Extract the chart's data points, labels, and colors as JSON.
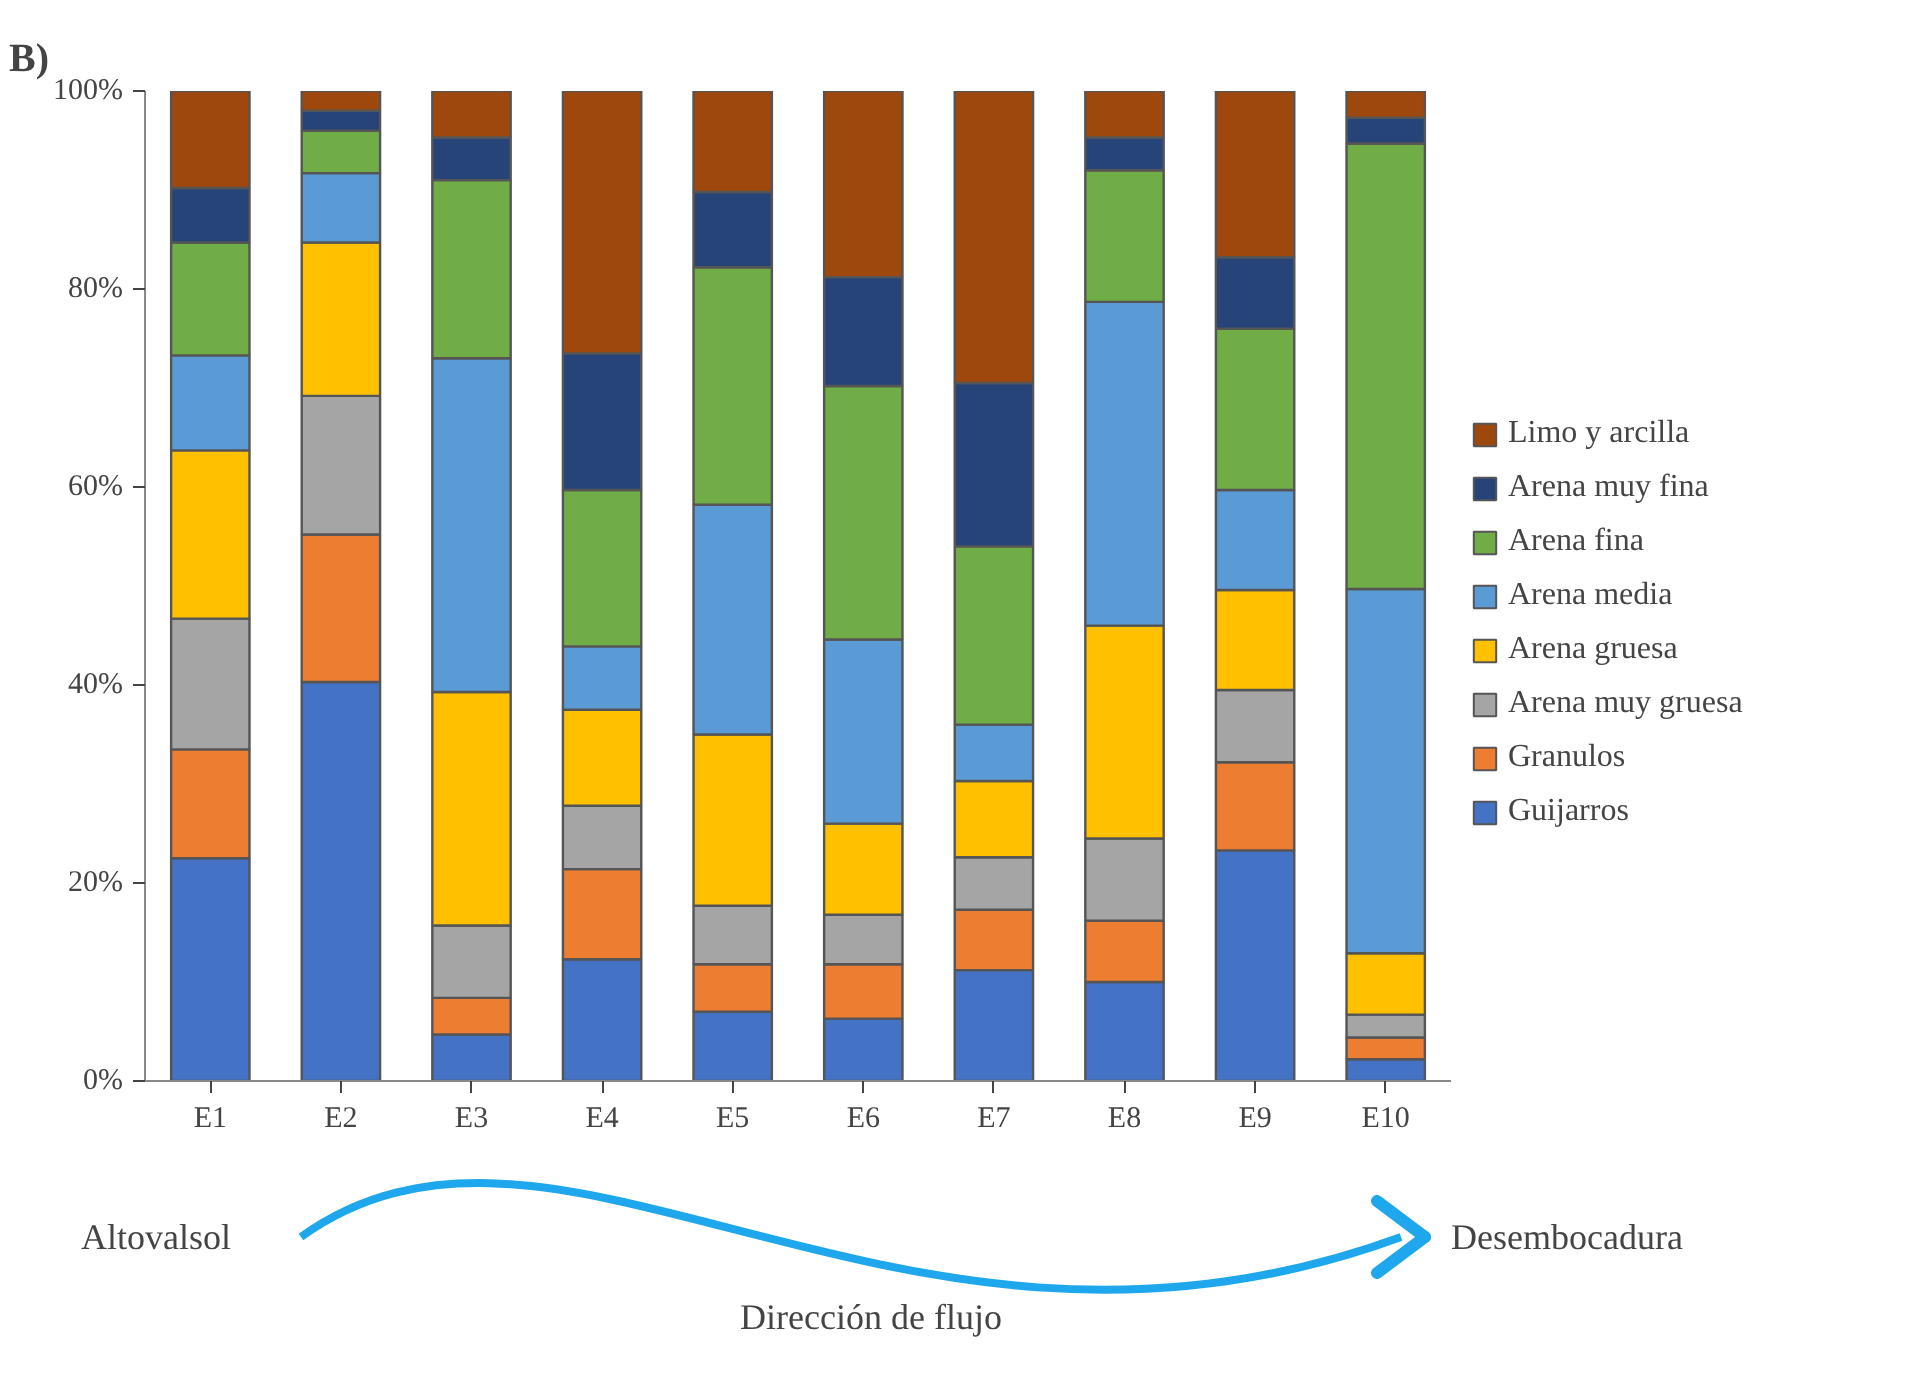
{
  "chart_data": {
    "type": "bar",
    "title": "B)",
    "stacked": true,
    "categories": [
      "E1",
      "E2",
      "E3",
      "E4",
      "E5",
      "E6",
      "E7",
      "E8",
      "E9",
      "E10"
    ],
    "ylim": [
      0,
      100
    ],
    "yticks": [
      {
        "value": 0,
        "label": "0%"
      },
      {
        "value": 20,
        "label": "20%"
      },
      {
        "value": 40,
        "label": "40%"
      },
      {
        "value": 60,
        "label": "60%"
      },
      {
        "value": 80,
        "label": "80%"
      },
      {
        "value": 100,
        "label": "100%"
      }
    ],
    "grid": false,
    "legend": "right",
    "series": [
      {
        "name": "Guijarros",
        "color": "#4472c4",
        "values": [
          22.5,
          40.3,
          4.7,
          12.3,
          7.0,
          6.3,
          11.2,
          10.0,
          23.3,
          2.2
        ]
      },
      {
        "name": "Granulos",
        "color": "#ed7d31",
        "values": [
          11.0,
          14.9,
          3.7,
          9.1,
          4.8,
          5.5,
          6.1,
          6.2,
          8.9,
          2.2
        ]
      },
      {
        "name": "Arena muy gruesa",
        "color": "#a5a5a5",
        "values": [
          13.2,
          14.0,
          7.3,
          6.4,
          5.9,
          5.0,
          5.3,
          8.3,
          7.3,
          2.3
        ]
      },
      {
        "name": "Arena gruesa",
        "color": "#ffc000",
        "values": [
          17.0,
          15.5,
          23.6,
          9.7,
          17.3,
          9.2,
          7.7,
          21.5,
          10.1,
          6.2
        ]
      },
      {
        "name": "Arena media",
        "color": "#5b9bd5",
        "values": [
          9.6,
          7.0,
          33.7,
          6.4,
          23.2,
          18.6,
          5.7,
          32.7,
          10.1,
          36.8
        ]
      },
      {
        "name": "Arena fina",
        "color": "#70ad47",
        "values": [
          11.4,
          4.3,
          18.0,
          15.8,
          24.0,
          25.6,
          18.0,
          13.3,
          16.3,
          45.0
        ]
      },
      {
        "name": "Arena muy fina",
        "color": "#264478",
        "values": [
          5.5,
          2.0,
          4.3,
          13.8,
          7.6,
          11.0,
          16.5,
          3.3,
          7.2,
          2.6
        ]
      },
      {
        "name": "Limo y arcilla",
        "color": "#9e480e",
        "values": [
          9.8,
          2.0,
          4.7,
          26.5,
          10.2,
          18.8,
          29.5,
          4.7,
          16.8,
          2.7
        ]
      }
    ],
    "annotations": [
      "Altovalsol",
      "Desembocadura",
      "Dirección de flujo"
    ]
  }
}
